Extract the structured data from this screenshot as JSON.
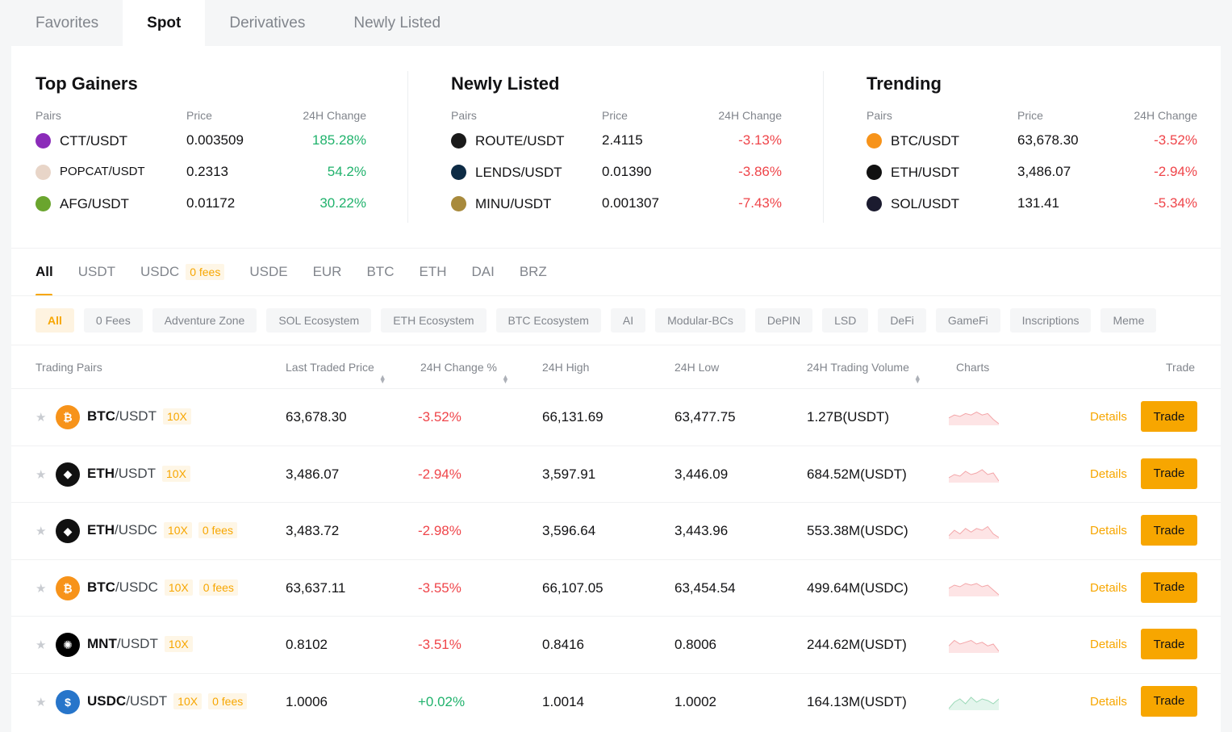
{
  "top_tabs": [
    "Favorites",
    "Spot",
    "Derivatives",
    "Newly Listed"
  ],
  "overview": {
    "headers": {
      "pairs": "Pairs",
      "price": "Price",
      "change": "24H Change"
    },
    "sections": [
      {
        "title": "Top Gainers",
        "rows": [
          {
            "pair": "CTT/USDT",
            "price": "0.003509",
            "change": "185.28%",
            "dir": "up",
            "icon_color": "#8b2bb9",
            "icon": "ctt-coin-icon"
          },
          {
            "pair": "POPCAT/USDT",
            "price": "0.2313",
            "change": "54.2%",
            "dir": "up",
            "icon_color": "#e8d5c8",
            "icon": "popcat-coin-icon"
          },
          {
            "pair": "AFG/USDT",
            "price": "0.01172",
            "change": "30.22%",
            "dir": "up",
            "icon_color": "#6aa52e",
            "icon": "afg-coin-icon"
          }
        ]
      },
      {
        "title": "Newly Listed",
        "rows": [
          {
            "pair": "ROUTE/USDT",
            "price": "2.4115",
            "change": "-3.13%",
            "dir": "down",
            "icon_color": "#1a1a1a",
            "icon": "route-coin-icon"
          },
          {
            "pair": "LENDS/USDT",
            "price": "0.01390",
            "change": "-3.86%",
            "dir": "down",
            "icon_color": "#0d2b45",
            "icon": "lends-coin-icon"
          },
          {
            "pair": "MINU/USDT",
            "price": "0.001307",
            "change": "-7.43%",
            "dir": "down",
            "icon_color": "#a88a3c",
            "icon": "minu-coin-icon"
          }
        ]
      },
      {
        "title": "Trending",
        "rows": [
          {
            "pair": "BTC/USDT",
            "price": "63,678.30",
            "change": "-3.52%",
            "dir": "down",
            "icon_color": "#f7931a",
            "icon": "bitcoin-coin-icon"
          },
          {
            "pair": "ETH/USDT",
            "price": "3,486.07",
            "change": "-2.94%",
            "dir": "down",
            "icon_color": "#111111",
            "icon": "ethereum-coin-icon"
          },
          {
            "pair": "SOL/USDT",
            "price": "131.41",
            "change": "-5.34%",
            "dir": "down",
            "icon_color": "#1b1b2f",
            "icon": "solana-coin-icon"
          }
        ]
      }
    ]
  },
  "quote_tabs": [
    {
      "label": "All"
    },
    {
      "label": "USDT"
    },
    {
      "label": "USDC",
      "badge": "0 fees"
    },
    {
      "label": "USDE"
    },
    {
      "label": "EUR"
    },
    {
      "label": "BTC"
    },
    {
      "label": "ETH"
    },
    {
      "label": "DAI"
    },
    {
      "label": "BRZ"
    }
  ],
  "chips": [
    "All",
    "0 Fees",
    "Adventure Zone",
    "SOL Ecosystem",
    "ETH Ecosystem",
    "BTC Ecosystem",
    "AI",
    "Modular-BCs",
    "DePIN",
    "LSD",
    "DeFi",
    "GameFi",
    "Inscriptions",
    "Meme"
  ],
  "table": {
    "headers": {
      "pairs": "Trading Pairs",
      "last": "Last Traded Price",
      "change": "24H Change %",
      "high": "24H High",
      "low": "24H Low",
      "volume": "24H Trading Volume",
      "charts": "Charts",
      "trade": "Trade"
    },
    "details_label": "Details",
    "trade_label": "Trade",
    "rows": [
      {
        "base": "BTC",
        "quote": "/USDT",
        "leverage": "10X",
        "fees": "",
        "last": "63,678.30",
        "change": "-3.52%",
        "dir": "down",
        "high": "66,131.69",
        "low": "63,477.75",
        "volume": "1.27B(USDT)",
        "icon_color": "#f7931a",
        "icon_glyph": "₿",
        "icon": "bitcoin-coin-icon",
        "spark": [
          8,
          6,
          7,
          5,
          6,
          4,
          6,
          5,
          9,
          12
        ]
      },
      {
        "base": "ETH",
        "quote": "/USDT",
        "leverage": "10X",
        "fees": "",
        "last": "3,486.07",
        "change": "-2.94%",
        "dir": "down",
        "high": "3,597.91",
        "low": "3,446.09",
        "volume": "684.52M(USDT)",
        "icon_color": "#111111",
        "icon_glyph": "◆",
        "icon": "ethereum-coin-icon",
        "spark": [
          9,
          7,
          8,
          5,
          7,
          6,
          4,
          7,
          6,
          11
        ]
      },
      {
        "base": "ETH",
        "quote": "/USDC",
        "leverage": "10X",
        "fees": "0 fees",
        "last": "3,483.72",
        "change": "-2.98%",
        "dir": "down",
        "high": "3,596.64",
        "low": "3,443.96",
        "volume": "553.38M(USDC)",
        "icon_color": "#111111",
        "icon_glyph": "◆",
        "icon": "ethereum-coin-icon",
        "spark": [
          9,
          6,
          8,
          5,
          7,
          5,
          6,
          4,
          8,
          10
        ]
      },
      {
        "base": "BTC",
        "quote": "/USDC",
        "leverage": "10X",
        "fees": "0 fees",
        "last": "63,637.11",
        "change": "-3.55%",
        "dir": "down",
        "high": "66,107.05",
        "low": "63,454.54",
        "volume": "499.64M(USDC)",
        "icon_color": "#f7931a",
        "icon_glyph": "₿",
        "icon": "bitcoin-coin-icon",
        "spark": [
          8,
          6,
          7,
          5,
          6,
          5,
          7,
          6,
          9,
          12
        ]
      },
      {
        "base": "MNT",
        "quote": "/USDT",
        "leverage": "10X",
        "fees": "",
        "last": "0.8102",
        "change": "-3.51%",
        "dir": "down",
        "high": "0.8416",
        "low": "0.8006",
        "volume": "244.62M(USDT)",
        "icon_color": "#000000",
        "icon_glyph": "✺",
        "icon": "mantle-coin-icon",
        "spark": [
          8,
          5,
          7,
          6,
          5,
          7,
          6,
          8,
          7,
          11
        ]
      },
      {
        "base": "USDC",
        "quote": "/USDT",
        "leverage": "10X",
        "fees": "0 fees",
        "last": "1.0006",
        "change": "+0.02%",
        "dir": "up",
        "high": "1.0014",
        "low": "1.0002",
        "volume": "164.13M(USDT)",
        "icon_color": "#2775ca",
        "icon_glyph": "$",
        "icon": "usdc-coin-icon",
        "spark": [
          12,
          8,
          6,
          9,
          5,
          8,
          6,
          7,
          9,
          6
        ]
      }
    ]
  },
  "colors": {
    "accent": "#f7a600",
    "up": "#20b26c",
    "down": "#ef454a"
  }
}
